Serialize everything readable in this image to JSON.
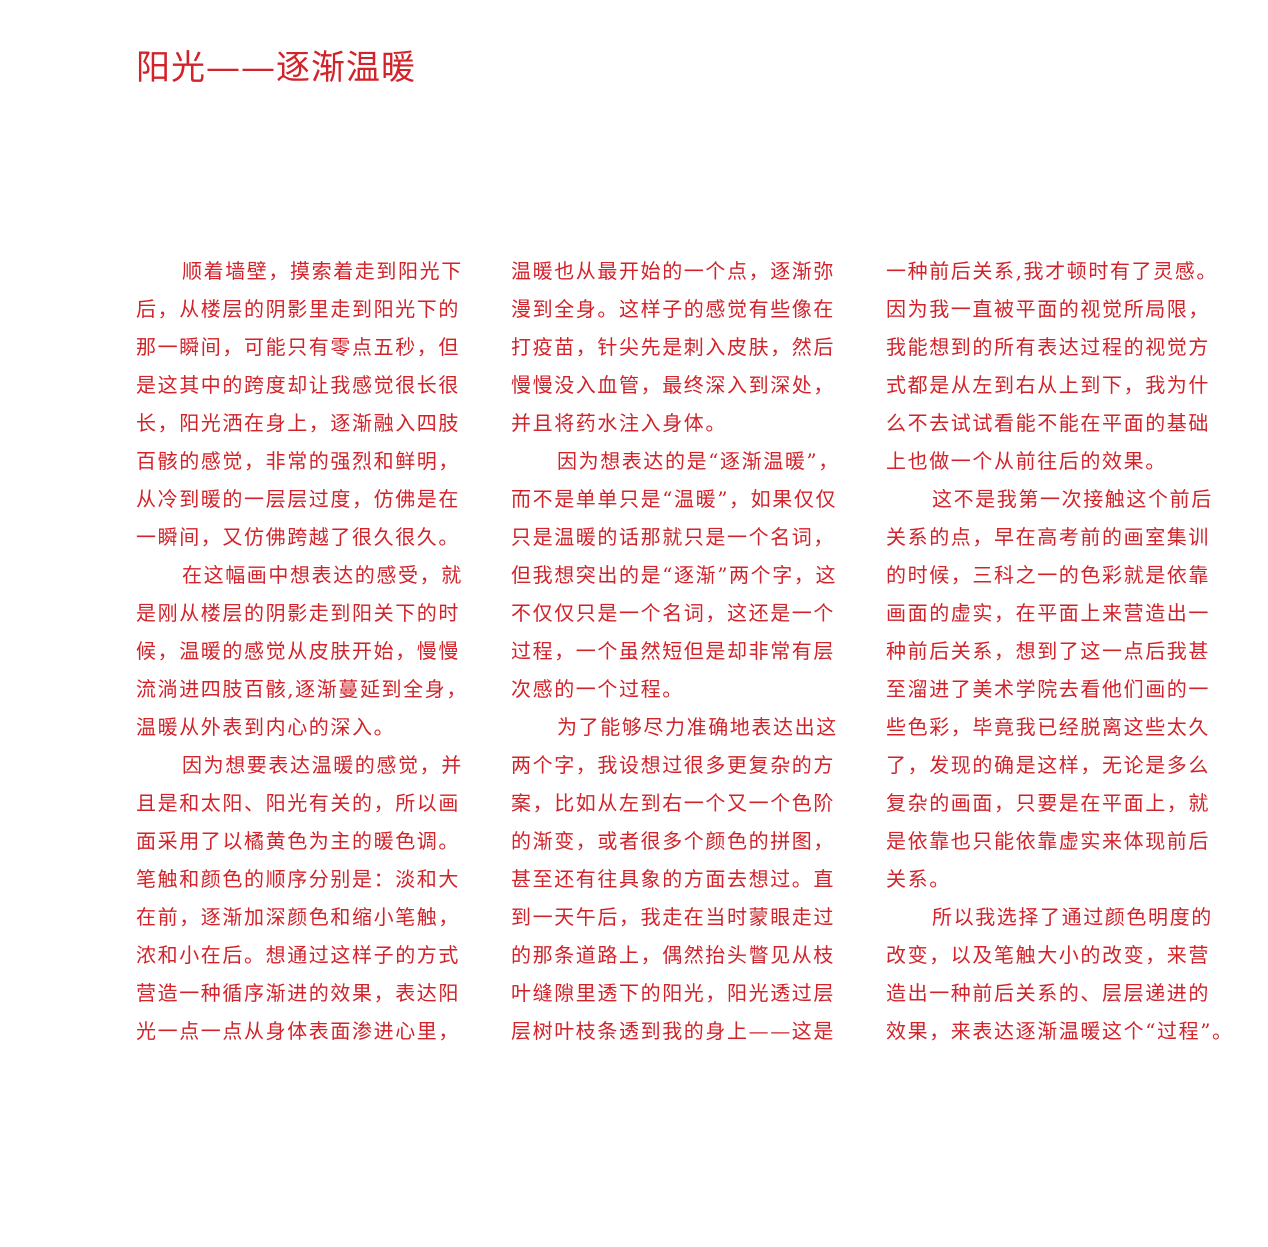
{
  "title": "阳光——逐渐温暖",
  "columns": [
    [
      {
        "text": "顺着墙壁，摸索着走到阳光下",
        "indent": true
      },
      {
        "text": "后，从楼层的阴影里走到阳光下的",
        "indent": false
      },
      {
        "text": "那一瞬间，可能只有零点五秒，但",
        "indent": false
      },
      {
        "text": "是这其中的跨度却让我感觉很长很",
        "indent": false
      },
      {
        "text": "长，阳光洒在身上，逐渐融入四肢",
        "indent": false
      },
      {
        "text": "百骸的感觉，非常的强烈和鲜明，",
        "indent": false
      },
      {
        "text": "从冷到暖的一层层过度，仿佛是在",
        "indent": false
      },
      {
        "text": "一瞬间，又仿佛跨越了很久很久。",
        "indent": false
      },
      {
        "text": "在这幅画中想表达的感受，就",
        "indent": true
      },
      {
        "text": "是刚从楼层的阴影走到阳关下的时",
        "indent": false
      },
      {
        "text": "候，温暖的感觉从皮肤开始，慢慢",
        "indent": false
      },
      {
        "text": "流淌进四肢百骸,逐渐蔓延到全身，",
        "indent": false
      },
      {
        "text": "温暖从外表到内心的深入。",
        "indent": false
      },
      {
        "text": "因为想要表达温暖的感觉，并",
        "indent": true
      },
      {
        "text": "且是和太阳、阳光有关的，所以画",
        "indent": false
      },
      {
        "text": "面采用了以橘黄色为主的暖色调。",
        "indent": false
      },
      {
        "text": "笔触和颜色的顺序分别是：淡和大",
        "indent": false
      },
      {
        "text": "在前，逐渐加深颜色和缩小笔触，",
        "indent": false
      },
      {
        "text": "浓和小在后。想通过这样子的方式",
        "indent": false
      },
      {
        "text": "营造一种循序渐进的效果，表达阳",
        "indent": false
      },
      {
        "text": "光一点一点从身体表面渗进心里，",
        "indent": false
      }
    ],
    [
      {
        "text": "温暖也从最开始的一个点，逐渐弥",
        "indent": false
      },
      {
        "text": "漫到全身。这样子的感觉有些像在",
        "indent": false
      },
      {
        "text": "打疫苗，针尖先是刺入皮肤，然后",
        "indent": false
      },
      {
        "text": "慢慢没入血管，最终深入到深处，",
        "indent": false
      },
      {
        "text": "并且将药水注入身体。",
        "indent": false
      },
      {
        "text": "因为想表达的是“逐渐温暖”，",
        "indent": true
      },
      {
        "text": "而不是单单只是“温暖”，如果仅仅",
        "indent": false
      },
      {
        "text": "只是温暖的话那就只是一个名词，",
        "indent": false
      },
      {
        "text": "但我想突出的是“逐渐”两个字，这",
        "indent": false
      },
      {
        "text": "不仅仅只是一个名词，这还是一个",
        "indent": false
      },
      {
        "text": "过程，一个虽然短但是却非常有层",
        "indent": false
      },
      {
        "text": "次感的一个过程。",
        "indent": false
      },
      {
        "text": "为了能够尽力准确地表达出这",
        "indent": true
      },
      {
        "text": "两个字，我设想过很多更复杂的方",
        "indent": false
      },
      {
        "text": "案，比如从左到右一个又一个色阶",
        "indent": false
      },
      {
        "text": "的渐变，或者很多个颜色的拼图，",
        "indent": false
      },
      {
        "text": "甚至还有往具象的方面去想过。直",
        "indent": false
      },
      {
        "text": "到一天午后，我走在当时蒙眼走过",
        "indent": false
      },
      {
        "text": "的那条道路上，偶然抬头瞥见从枝",
        "indent": false
      },
      {
        "text": "叶缝隙里透下的阳光，阳光透过层",
        "indent": false
      },
      {
        "text": "层树叶枝条透到我的身上——这是",
        "indent": false
      }
    ],
    [
      {
        "text": "一种前后关系,我才顿时有了灵感。",
        "indent": false
      },
      {
        "text": "因为我一直被平面的视觉所局限，",
        "indent": false
      },
      {
        "text": "我能想到的所有表达过程的视觉方",
        "indent": false
      },
      {
        "text": "式都是从左到右从上到下，我为什",
        "indent": false
      },
      {
        "text": "么不去试试看能不能在平面的基础",
        "indent": false
      },
      {
        "text": "上也做一个从前往后的效果。",
        "indent": false
      },
      {
        "text": "这不是我第一次接触这个前后",
        "indent": true
      },
      {
        "text": "关系的点，早在高考前的画室集训",
        "indent": false
      },
      {
        "text": "的时候，三科之一的色彩就是依靠",
        "indent": false
      },
      {
        "text": "画面的虚实，在平面上来营造出一",
        "indent": false
      },
      {
        "text": "种前后关系，想到了这一点后我甚",
        "indent": false
      },
      {
        "text": "至溜进了美术学院去看他们画的一",
        "indent": false
      },
      {
        "text": "些色彩，毕竟我已经脱离这些太久",
        "indent": false
      },
      {
        "text": "了，发现的确是这样，无论是多么",
        "indent": false
      },
      {
        "text": "复杂的画面，只要是在平面上，就",
        "indent": false
      },
      {
        "text": "是依靠也只能依靠虚实来体现前后",
        "indent": false
      },
      {
        "text": "关系。",
        "indent": false
      },
      {
        "text": "所以我选择了通过颜色明度的",
        "indent": true
      },
      {
        "text": "改变，以及笔触大小的改变，来营",
        "indent": false
      },
      {
        "text": "造出一种前后关系的、层层递进的",
        "indent": false
      },
      {
        "text": "效果，来表达逐渐温暖这个“过程”。",
        "indent": false
      }
    ]
  ]
}
